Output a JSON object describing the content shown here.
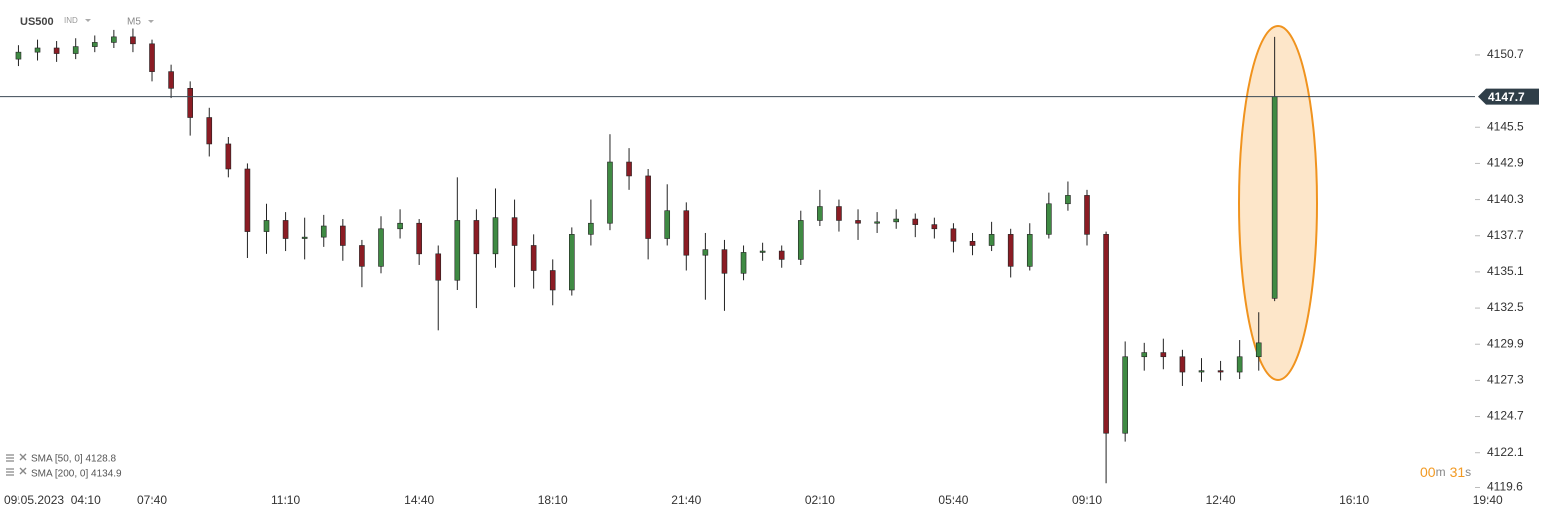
{
  "header": {
    "symbol": "US500",
    "market": "IND",
    "timeframe": "M5"
  },
  "indicators": [
    {
      "label": "SMA [50, 0] 4128.8"
    },
    {
      "label": "SMA [200, 0] 4134.9"
    }
  ],
  "timer": [
    "00",
    "m",
    "31",
    "s"
  ],
  "chart_data": {
    "type": "candlestick",
    "up_color": "#3f8a43",
    "down_color": "#8b1c24",
    "current_price": 4147.7,
    "xlim": [
      -5.8,
      458
    ],
    "ylim": [
      4118.7,
      4154.65
    ],
    "xticks": [
      {
        "value": 0,
        "label": "09.05.2023  04:10"
      },
      {
        "value": 42,
        "label": "07:40"
      },
      {
        "value": 84,
        "label": "11:10"
      },
      {
        "value": 126,
        "label": "14:40"
      },
      {
        "value": 168,
        "label": "18:10"
      },
      {
        "value": 210,
        "label": "21:40"
      },
      {
        "value": 252,
        "label": "02:10"
      },
      {
        "value": 294,
        "label": "05:40"
      },
      {
        "value": 336,
        "label": "09:10"
      },
      {
        "value": 378,
        "label": "12:40"
      },
      {
        "value": 420,
        "label": "16:10"
      },
      {
        "value": 462,
        "label": "19:40"
      }
    ],
    "yticks": [
      4150.7,
      4145.5,
      4142.9,
      4140.3,
      4137.7,
      4135.1,
      4132.5,
      4129.9,
      4127.3,
      4124.7,
      4122.1,
      4119.6
    ],
    "x": [
      0,
      6,
      12,
      18,
      24,
      30,
      36,
      42,
      48,
      54,
      60,
      66,
      72,
      78,
      84,
      90,
      96,
      102,
      108,
      114,
      120,
      126,
      132,
      138,
      144,
      150,
      156,
      162,
      168,
      174,
      180,
      186,
      192,
      198,
      204,
      210,
      216,
      222,
      228,
      234,
      240,
      246,
      252,
      258,
      264,
      270,
      276,
      282,
      288,
      294,
      300,
      306,
      312,
      318,
      324,
      330,
      336,
      342,
      348,
      354,
      360,
      366,
      372,
      378,
      384,
      390,
      395
    ],
    "open": [
      4150.4,
      4150.9,
      4151.2,
      4150.8,
      4151.3,
      4151.6,
      4152.0,
      4151.5,
      4149.5,
      4148.3,
      4146.2,
      4144.3,
      4142.5,
      4138.0,
      4138.8,
      4137.5,
      4137.6,
      4138.4,
      4137.0,
      4135.5,
      4138.2,
      4138.6,
      4136.4,
      4134.5,
      4138.8,
      4136.4,
      4139.0,
      4137.0,
      4135.2,
      4133.8,
      4137.8,
      4138.6,
      4143.0,
      4142.0,
      4137.5,
      4139.5,
      4136.3,
      4136.7,
      4135.0,
      4136.5,
      4136.6,
      4136.0,
      4138.8,
      4139.8,
      4138.8,
      4138.6,
      4138.7,
      4138.9,
      4138.5,
      4138.2,
      4137.3,
      4137.0,
      4137.8,
      4135.5,
      4137.8,
      4140.0,
      4140.6,
      4137.8,
      4123.5,
      4129.0,
      4129.3,
      4129.0,
      4127.9,
      4128.0,
      4127.9,
      4129.0,
      4133.2
    ],
    "high": [
      4151.4,
      4151.8,
      4151.7,
      4151.9,
      4152.1,
      4152.5,
      4152.6,
      4151.8,
      4150.0,
      4148.8,
      4146.9,
      4144.8,
      4142.9,
      4140.0,
      4139.4,
      4139.0,
      4139.2,
      4138.9,
      4137.4,
      4139.1,
      4139.6,
      4138.9,
      4137.0,
      4141.9,
      4139.6,
      4141.1,
      4140.3,
      4137.8,
      4136.0,
      4138.3,
      4140.3,
      4145.0,
      4144.0,
      4142.5,
      4141.4,
      4140.1,
      4137.9,
      4137.4,
      4137.0,
      4137.2,
      4137.0,
      4139.5,
      4141.0,
      4140.3,
      4139.6,
      4139.4,
      4139.6,
      4139.3,
      4139.0,
      4138.6,
      4137.9,
      4138.7,
      4138.2,
      4138.6,
      4140.8,
      4141.6,
      4141.0,
      4138.0,
      4130.1,
      4130.0,
      4130.3,
      4129.5,
      4128.9,
      4128.7,
      4130.2,
      4132.2,
      4152.0
    ],
    "low": [
      4149.9,
      4150.3,
      4150.2,
      4150.4,
      4150.9,
      4151.2,
      4150.9,
      4148.8,
      4147.6,
      4144.9,
      4143.4,
      4141.9,
      4136.1,
      4136.4,
      4136.6,
      4136.0,
      4136.9,
      4135.9,
      4134.0,
      4135.0,
      4137.5,
      4135.6,
      4130.9,
      4133.8,
      4132.5,
      4135.4,
      4134.0,
      4133.9,
      4132.7,
      4133.4,
      4137.0,
      4138.1,
      4141.0,
      4136.0,
      4137.0,
      4135.2,
      4133.1,
      4132.3,
      4134.5,
      4135.9,
      4135.4,
      4135.6,
      4138.4,
      4138.0,
      4137.4,
      4137.9,
      4138.2,
      4137.6,
      4137.5,
      4136.5,
      4136.3,
      4136.6,
      4134.7,
      4135.2,
      4137.5,
      4139.5,
      4137.0,
      4119.9,
      4122.9,
      4128.0,
      4128.1,
      4126.9,
      4127.2,
      4127.3,
      4127.4,
      4128.0,
      4133.0
    ],
    "close": [
      4150.9,
      4151.2,
      4150.8,
      4151.3,
      4151.6,
      4152.0,
      4151.5,
      4149.5,
      4148.3,
      4146.2,
      4144.3,
      4142.5,
      4138.0,
      4138.8,
      4137.5,
      4137.6,
      4138.4,
      4137.0,
      4135.5,
      4138.2,
      4138.6,
      4136.4,
      4134.5,
      4138.8,
      4136.4,
      4139.0,
      4137.0,
      4135.2,
      4133.8,
      4137.8,
      4138.6,
      4143.0,
      4142.0,
      4137.5,
      4139.5,
      4136.3,
      4136.7,
      4135.0,
      4136.5,
      4136.6,
      4136.0,
      4138.8,
      4139.8,
      4138.8,
      4138.6,
      4138.7,
      4138.9,
      4138.5,
      4138.2,
      4137.3,
      4137.0,
      4137.8,
      4135.5,
      4137.8,
      4140.0,
      4140.6,
      4137.8,
      4123.5,
      4129.0,
      4129.3,
      4129.0,
      4127.9,
      4128.0,
      4127.9,
      4129.0,
      4130.0,
      4147.7
    ]
  }
}
